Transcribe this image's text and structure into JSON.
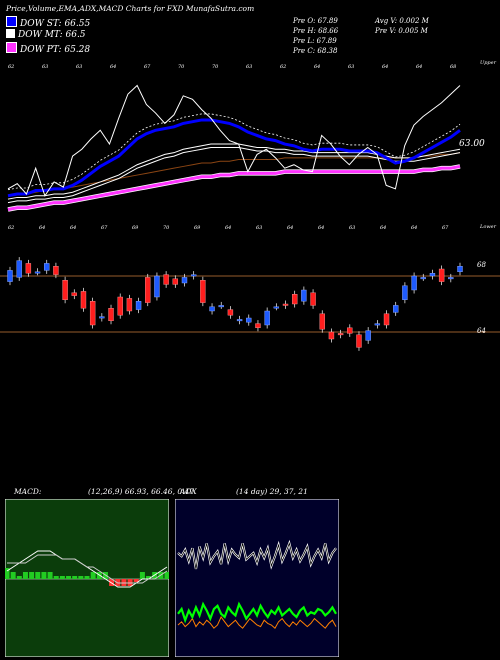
{
  "header": {
    "title": "Price,Volume,EMA,ADX,MACD Charts for FXD MunafaSutra.com"
  },
  "legend": [
    {
      "label": "DOW ST: 66.55",
      "color": "#0000ff"
    },
    {
      "label": "DOW MT: 66.5",
      "color": "#ffffff"
    },
    {
      "label": "DOW PT: 65.28",
      "color": "#ff33ff"
    }
  ],
  "stats": {
    "prev_open": "Pre  O: 67.89",
    "prev_high": "Pre  H: 68.66",
    "prev_low": "Pre  L: 67.89",
    "prev_close": "Pre  C: 68.38",
    "avg_volume": "Avg V: 0.002  M",
    "prev_volume": "Pre  V: 0.005 M"
  },
  "price_panel": {
    "last_price_label": "63.00",
    "upper_label": "Upper",
    "lower_label": "Lower",
    "top_ticks": [
      "62",
      "63",
      "63",
      "64",
      "67",
      "70",
      "70",
      "63",
      "62",
      "64",
      "63",
      "64",
      "64",
      "68"
    ],
    "bottom_ticks": [
      "62",
      "64",
      "64",
      "67",
      "69",
      "70",
      "69",
      "64",
      "63",
      "64",
      "64",
      "63",
      "64",
      "64",
      "67"
    ]
  },
  "candle_panel": {
    "upper_level": "68",
    "lower_level": "64"
  },
  "macd": {
    "label": "MACD:",
    "values": "(12,26,9) 66.93,  66.46,  0.47"
  },
  "adx": {
    "label": "ADX",
    "values": "(14 day) 29,  37,  21"
  },
  "colors": {
    "background": "#000000",
    "ema_short": "#0000ff",
    "ema_mid": "#ffffff",
    "ema_long": "#ff33ff",
    "candle_up": "#1e5bff",
    "candle_down": "#ff1e1e",
    "macd_bg": "#0b3d0b",
    "adx_bg": "#00002a",
    "adx_di_plus": "#00ff00",
    "adx_di_minus": "#ff7f00"
  },
  "chart_data": {
    "type": "line",
    "price_close": [
      61.6,
      61.9,
      61.3,
      62.8,
      61.2,
      62.0,
      61.7,
      63.5,
      63.9,
      64.5,
      65.0,
      64.2,
      65.7,
      67.1,
      67.6,
      66.5,
      66.0,
      65.4,
      65.9,
      67.0,
      66.8,
      66.2,
      65.7,
      65.0,
      64.4,
      64.2,
      62.6,
      63.6,
      63.9,
      63.4,
      62.8,
      63.0,
      62.7,
      62.6,
      64.7,
      64.2,
      63.5,
      63.0,
      63.6,
      64.0,
      63.6,
      61.8,
      61.6,
      64.1,
      65.3,
      65.8,
      66.2,
      66.6,
      67.1,
      67.6
    ],
    "ema_short": [
      61.2,
      61.3,
      61.3,
      61.5,
      61.5,
      61.6,
      61.6,
      61.8,
      62.1,
      62.5,
      62.9,
      63.2,
      63.5,
      64.0,
      64.5,
      64.8,
      65.0,
      65.1,
      65.2,
      65.4,
      65.5,
      65.6,
      65.6,
      65.5,
      65.4,
      65.2,
      64.9,
      64.7,
      64.5,
      64.4,
      64.2,
      64.1,
      63.9,
      63.8,
      63.9,
      63.9,
      63.9,
      63.8,
      63.8,
      63.8,
      63.7,
      63.4,
      63.1,
      63.2,
      63.4,
      63.7,
      64.0,
      64.3,
      64.6,
      65.0
    ],
    "ema_mid": [
      61.0,
      61.1,
      61.1,
      61.2,
      61.2,
      61.3,
      61.3,
      61.4,
      61.6,
      61.8,
      62.0,
      62.2,
      62.4,
      62.7,
      63.0,
      63.2,
      63.4,
      63.6,
      63.7,
      63.9,
      64.0,
      64.1,
      64.2,
      64.2,
      64.2,
      64.2,
      64.1,
      64.0,
      64.0,
      63.9,
      63.9,
      63.8,
      63.8,
      63.7,
      63.7,
      63.7,
      63.7,
      63.7,
      63.7,
      63.7,
      63.6,
      63.5,
      63.4,
      63.4,
      63.4,
      63.5,
      63.6,
      63.7,
      63.8,
      63.9
    ],
    "ema_long": [
      60.4,
      60.5,
      60.5,
      60.6,
      60.7,
      60.8,
      60.8,
      60.9,
      61.0,
      61.1,
      61.2,
      61.3,
      61.4,
      61.5,
      61.6,
      61.7,
      61.8,
      61.9,
      62.0,
      62.1,
      62.2,
      62.3,
      62.3,
      62.4,
      62.4,
      62.5,
      62.5,
      62.5,
      62.5,
      62.5,
      62.6,
      62.6,
      62.6,
      62.6,
      62.6,
      62.6,
      62.6,
      62.6,
      62.6,
      62.6,
      62.6,
      62.6,
      62.6,
      62.6,
      62.6,
      62.7,
      62.7,
      62.8,
      62.8,
      62.9
    ],
    "candles": [
      {
        "o": 67.6,
        "c": 68.4
      },
      {
        "o": 67.9,
        "c": 69.1
      },
      {
        "o": 68.9,
        "c": 68.2
      },
      {
        "o": 68.3,
        "c": 68.3
      },
      {
        "o": 68.4,
        "c": 68.9
      },
      {
        "o": 68.7,
        "c": 68.1
      },
      {
        "o": 67.7,
        "c": 66.3
      },
      {
        "o": 66.8,
        "c": 66.6
      },
      {
        "o": 66.9,
        "c": 65.7
      },
      {
        "o": 66.2,
        "c": 64.5
      },
      {
        "o": 65.0,
        "c": 65.1
      },
      {
        "o": 65.7,
        "c": 64.8
      },
      {
        "o": 66.5,
        "c": 65.2
      },
      {
        "o": 66.4,
        "c": 65.5
      },
      {
        "o": 65.6,
        "c": 66.2
      },
      {
        "o": 67.9,
        "c": 66.1
      },
      {
        "o": 66.5,
        "c": 68.0
      },
      {
        "o": 68.1,
        "c": 67.4
      },
      {
        "o": 67.8,
        "c": 67.4
      },
      {
        "o": 67.5,
        "c": 67.9
      },
      {
        "o": 68.0,
        "c": 68.1
      },
      {
        "o": 67.7,
        "c": 66.1
      },
      {
        "o": 65.5,
        "c": 65.8
      },
      {
        "o": 65.9,
        "c": 65.9
      },
      {
        "o": 65.6,
        "c": 65.2
      },
      {
        "o": 64.8,
        "c": 64.9
      },
      {
        "o": 64.7,
        "c": 65.0
      },
      {
        "o": 64.6,
        "c": 64.3
      },
      {
        "o": 64.5,
        "c": 65.5
      },
      {
        "o": 65.8,
        "c": 65.8
      },
      {
        "o": 66.0,
        "c": 65.9
      },
      {
        "o": 66.7,
        "c": 66.0
      },
      {
        "o": 66.2,
        "c": 67.0
      },
      {
        "o": 66.8,
        "c": 65.9
      },
      {
        "o": 65.3,
        "c": 64.2
      },
      {
        "o": 64.0,
        "c": 63.5
      },
      {
        "o": 63.9,
        "c": 63.8
      },
      {
        "o": 64.3,
        "c": 63.9
      },
      {
        "o": 63.8,
        "c": 62.9
      },
      {
        "o": 63.4,
        "c": 64.1
      },
      {
        "o": 64.5,
        "c": 64.6
      },
      {
        "o": 65.3,
        "c": 64.5
      },
      {
        "o": 65.4,
        "c": 65.9
      },
      {
        "o": 66.3,
        "c": 67.3
      },
      {
        "o": 67.0,
        "c": 68.0
      },
      {
        "o": 67.9,
        "c": 67.9
      },
      {
        "o": 68.0,
        "c": 68.2
      },
      {
        "o": 68.5,
        "c": 67.6
      },
      {
        "o": 67.8,
        "c": 67.9
      },
      {
        "o": 68.3,
        "c": 68.7
      }
    ],
    "macd_line": [
      0.2,
      0.3,
      0.4,
      0.5,
      0.6,
      0.7,
      0.7,
      0.7,
      0.6,
      0.5,
      0.5,
      0.5,
      0.4,
      0.3,
      0.2,
      0.1,
      0.0,
      -0.1,
      -0.2,
      -0.2,
      -0.2,
      -0.1,
      0.0,
      0.0,
      0.1,
      0.2,
      0.3
    ],
    "macd_signal": [
      0.4,
      0.4,
      0.4,
      0.4,
      0.5,
      0.6,
      0.6,
      0.6,
      0.6,
      0.5,
      0.5,
      0.5,
      0.4,
      0.3,
      0.3,
      0.2,
      0.1,
      0.0,
      -0.1,
      -0.1,
      -0.1,
      -0.1,
      -0.1,
      0.0,
      0.0,
      0.1,
      0.2
    ],
    "adx_line": [
      60,
      58,
      62,
      55,
      63,
      50,
      64,
      57,
      66,
      54,
      58,
      61,
      53,
      66,
      55,
      62,
      59,
      57,
      66,
      56,
      58,
      60,
      54,
      62,
      57,
      63,
      52,
      58,
      65,
      55,
      60,
      66,
      57,
      62,
      55,
      59,
      64,
      53,
      58,
      62,
      57,
      66,
      55,
      60,
      63
    ],
    "di_plus": [
      22,
      25,
      18,
      24,
      20,
      26,
      21,
      28,
      24,
      19,
      25,
      27,
      22,
      20,
      26,
      23,
      21,
      28,
      24,
      19,
      22,
      25,
      21,
      27,
      23,
      20,
      24,
      22,
      26,
      21,
      23,
      25,
      22,
      20,
      24,
      26,
      21,
      23,
      22,
      25,
      24,
      21,
      23,
      26,
      22
    ],
    "di_minus": [
      15,
      17,
      14,
      16,
      19,
      14,
      17,
      15,
      18,
      16,
      13,
      15,
      20,
      17,
      14,
      16,
      18,
      15,
      13,
      16,
      19,
      17,
      15,
      14,
      18,
      16,
      15,
      13,
      17,
      19,
      16,
      14,
      17,
      15,
      18,
      16,
      14,
      16,
      19,
      17,
      15,
      13,
      16,
      18,
      14
    ]
  }
}
